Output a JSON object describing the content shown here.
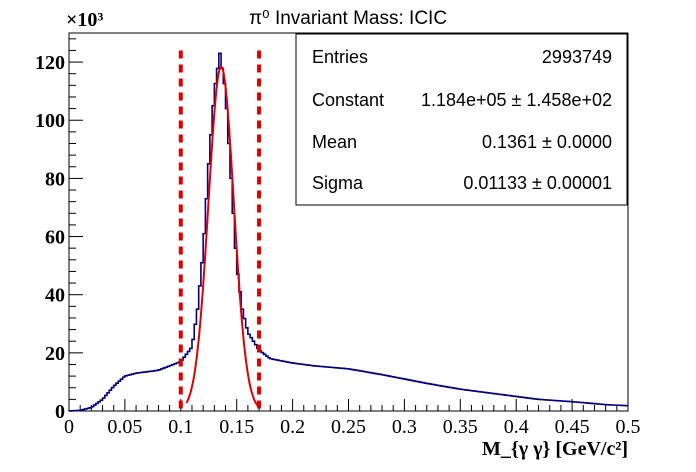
{
  "chart_data": {
    "type": "histogram",
    "title": "π⁰ Invariant Mass: ICIC",
    "xlabel": "M_{γ γ} [GeV/c²]",
    "ylabel": "",
    "y_multiplier_label": "×10³",
    "xlim": [
      0,
      0.5
    ],
    "ylim": [
      0,
      130
    ],
    "x_ticks": [
      0,
      0.05,
      0.1,
      0.15,
      0.2,
      0.25,
      0.3,
      0.35,
      0.4,
      0.45,
      0.5
    ],
    "x_tick_labels": [
      "0",
      "0.05",
      "0.1",
      "0.15",
      "0.2",
      "0.25",
      "0.3",
      "0.35",
      "0.4",
      "0.45",
      "0.5"
    ],
    "y_ticks": [
      0,
      20,
      40,
      60,
      80,
      100,
      120
    ],
    "y_tick_labels": [
      "0",
      "20",
      "40",
      "60",
      "80",
      "100",
      "120"
    ],
    "histogram_points": [
      [
        0.0,
        0.0
      ],
      [
        0.01,
        0.2
      ],
      [
        0.02,
        1.2
      ],
      [
        0.03,
        4.0
      ],
      [
        0.04,
        8.5
      ],
      [
        0.05,
        12.0
      ],
      [
        0.06,
        13.0
      ],
      [
        0.07,
        13.5
      ],
      [
        0.08,
        14.0
      ],
      [
        0.09,
        15.5
      ],
      [
        0.1,
        17.0
      ],
      [
        0.11,
        22.0
      ],
      [
        0.115,
        35.0
      ],
      [
        0.12,
        55.0
      ],
      [
        0.125,
        85.0
      ],
      [
        0.13,
        110.0
      ],
      [
        0.135,
        123.0
      ],
      [
        0.14,
        110.0
      ],
      [
        0.145,
        80.0
      ],
      [
        0.15,
        50.0
      ],
      [
        0.155,
        35.0
      ],
      [
        0.16,
        27.0
      ],
      [
        0.17,
        21.0
      ],
      [
        0.18,
        18.0
      ],
      [
        0.2,
        16.5
      ],
      [
        0.22,
        15.5
      ],
      [
        0.25,
        14.5
      ],
      [
        0.28,
        12.5
      ],
      [
        0.3,
        11.0
      ],
      [
        0.32,
        9.5
      ],
      [
        0.35,
        7.5
      ],
      [
        0.38,
        6.0
      ],
      [
        0.4,
        5.0
      ],
      [
        0.42,
        4.0
      ],
      [
        0.45,
        3.2
      ],
      [
        0.48,
        2.2
      ],
      [
        0.5,
        1.8
      ]
    ],
    "fit": {
      "constant": 118.4,
      "mean": 0.1361,
      "sigma": 0.01133
    },
    "fit_range": [
      0.105,
      0.17
    ],
    "vertical_lines": [
      0.1,
      0.17
    ],
    "colors": {
      "histogram": "#000080",
      "fit": "#e00000",
      "marker": "#e00000"
    },
    "stats": [
      {
        "label": "Entries",
        "value": "2993749"
      },
      {
        "label": "Constant",
        "value": "1.184e+05 ± 1.458e+02"
      },
      {
        "label": "Mean",
        "value": "0.1361 ± 0.0000"
      },
      {
        "label": "Sigma",
        "value": "0.01133 ± 0.00001"
      }
    ]
  }
}
